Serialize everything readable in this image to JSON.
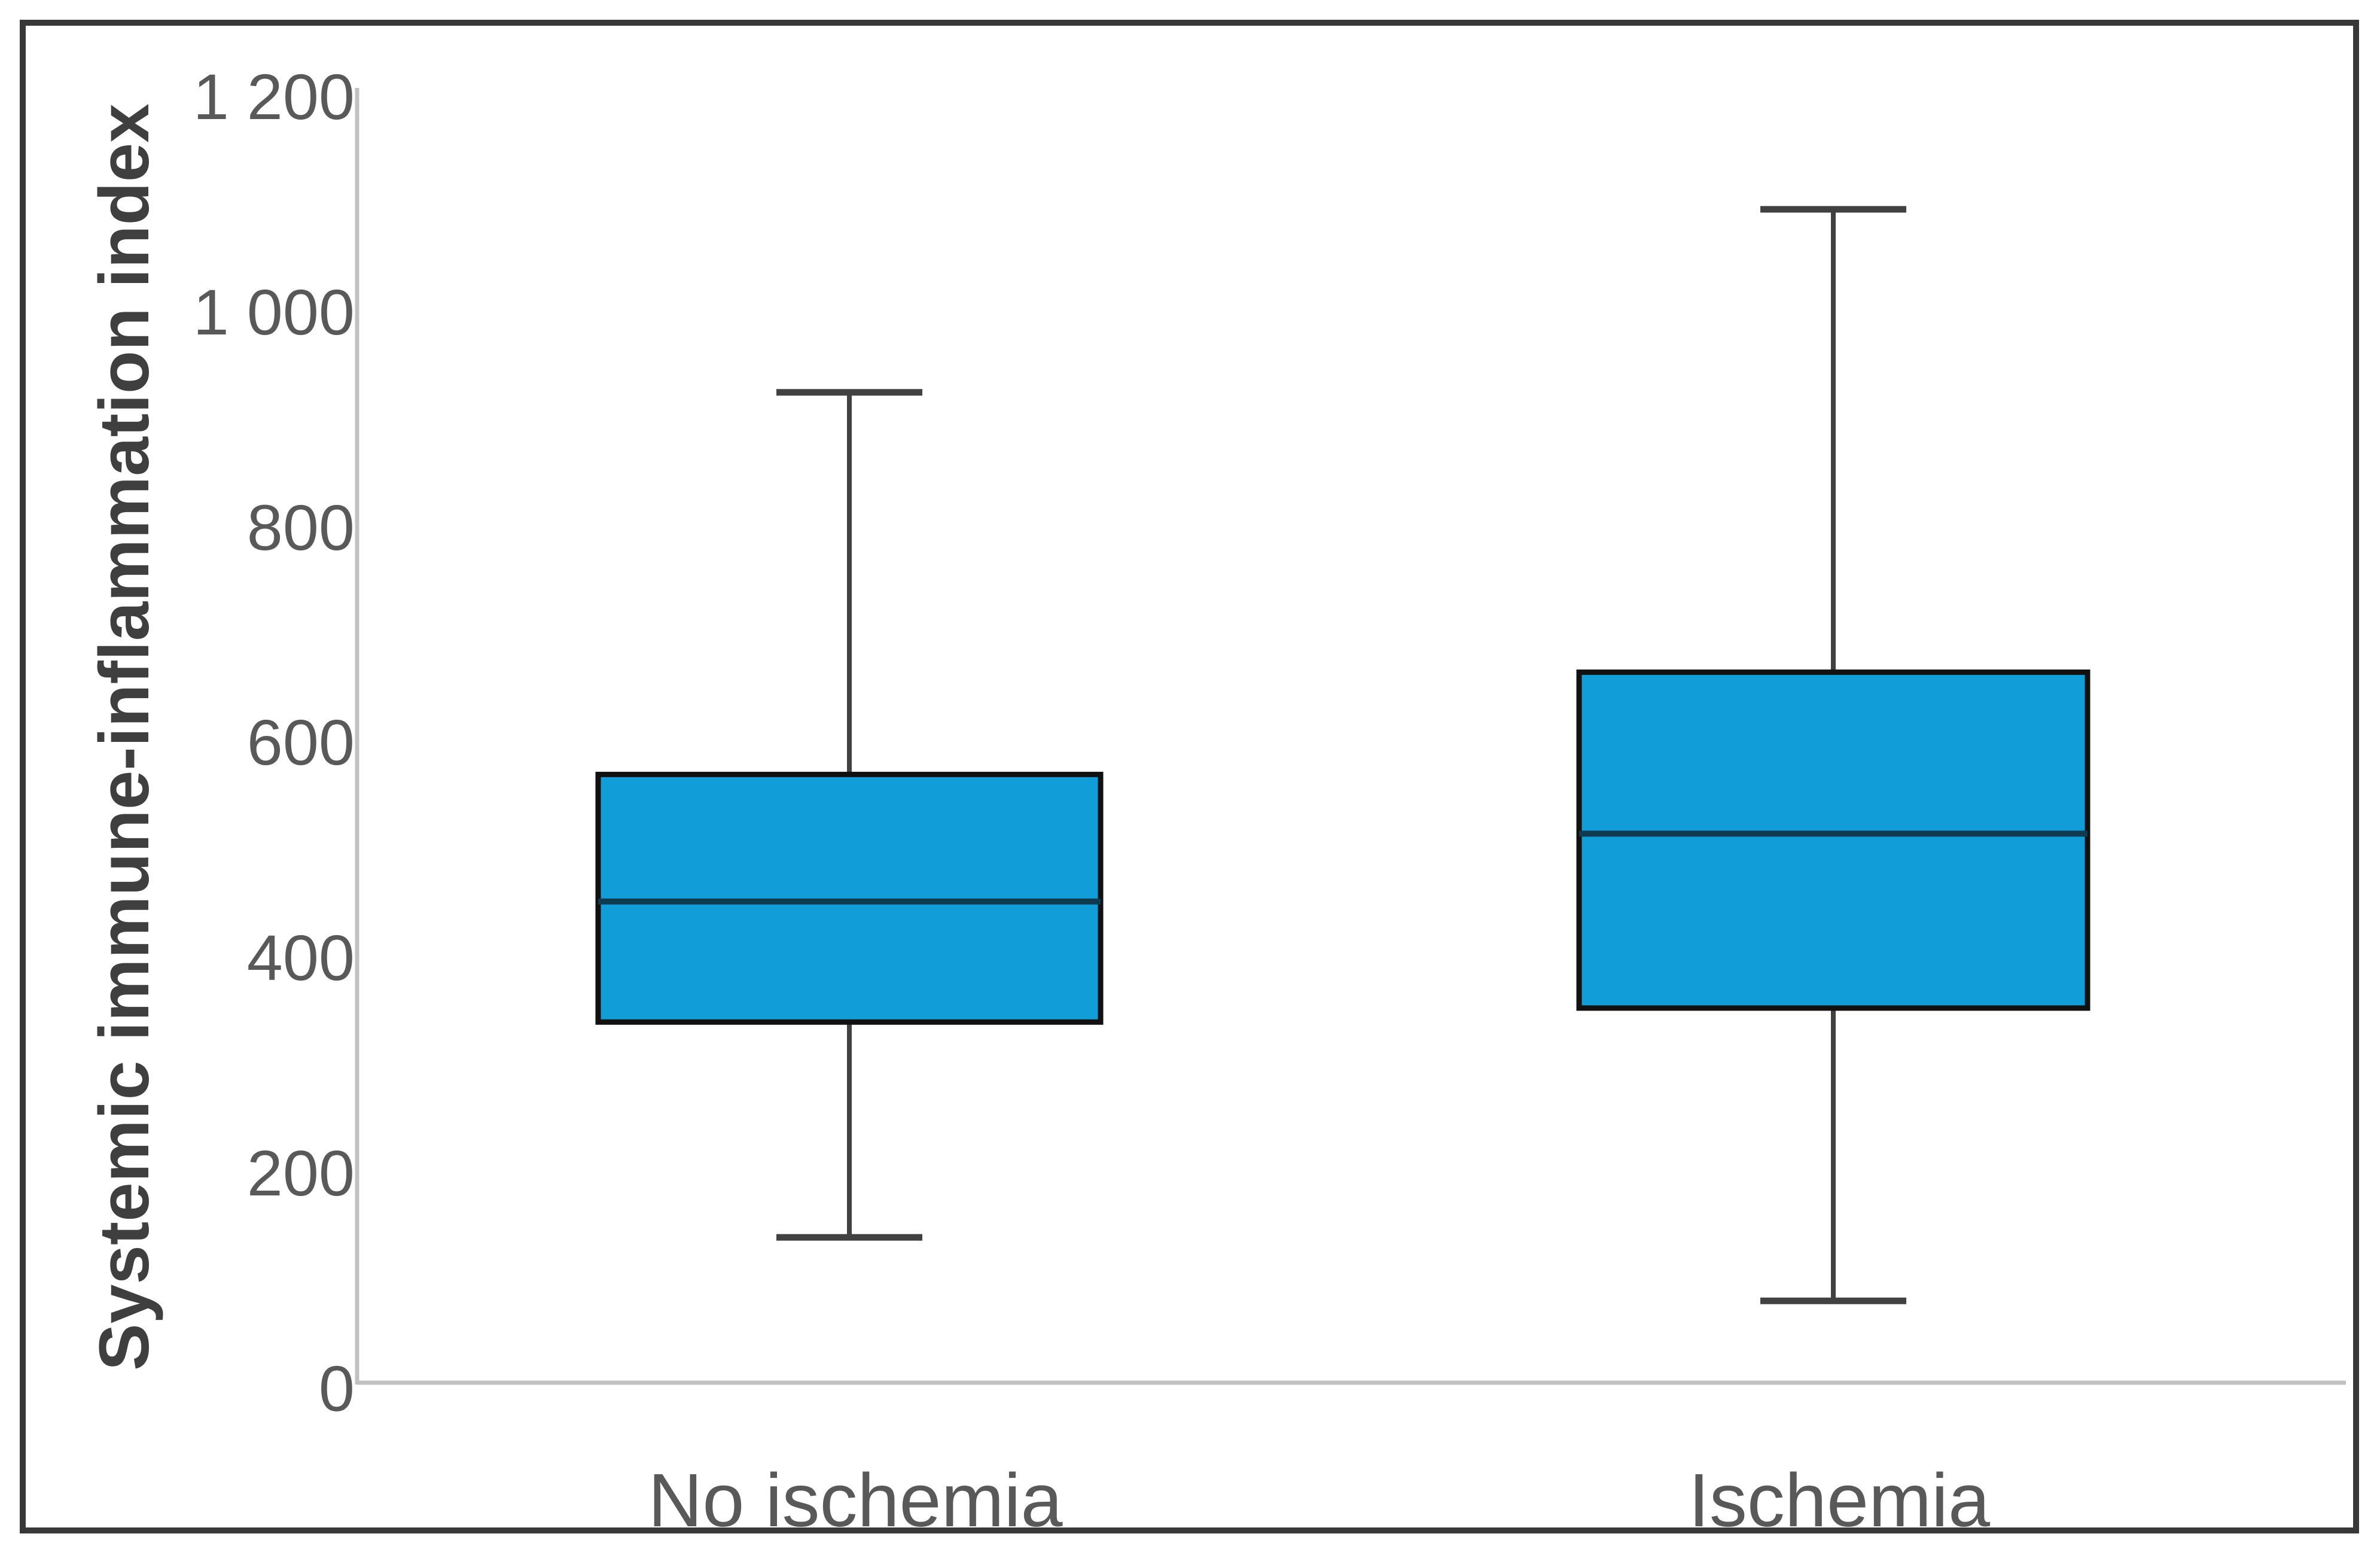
{
  "chart_data": {
    "type": "boxplot",
    "title": "",
    "xlabel": "",
    "ylabel": "Systemic immune-inflammation index",
    "categories": [
      "No ischemia",
      "Ischemia"
    ],
    "series": [
      {
        "name": "No ischemia",
        "min": 135,
        "q1": 335,
        "median": 447,
        "q3": 565,
        "max": 920
      },
      {
        "name": "Ischemia",
        "min": 76,
        "q1": 348,
        "median": 510,
        "q3": 660,
        "max": 1090
      }
    ],
    "y_axis": {
      "min": 0,
      "max": 1200,
      "step": 200,
      "tick_values": [
        0,
        200,
        400,
        600,
        800,
        1000,
        1200
      ],
      "tick_labels": [
        "0",
        "200",
        "400",
        "600",
        "800",
        "1 000",
        "1 200"
      ]
    },
    "grid": false,
    "legend": false,
    "colors": {
      "box_fill": "#119dd8",
      "box_border": "#111111",
      "median_line": "#0f3a50",
      "whisker": "#414141",
      "axis_line": "#c1c1c1",
      "tick_text": "#595959",
      "axis_title_text": "#3f3f3f",
      "frame_border": "#383838"
    }
  }
}
